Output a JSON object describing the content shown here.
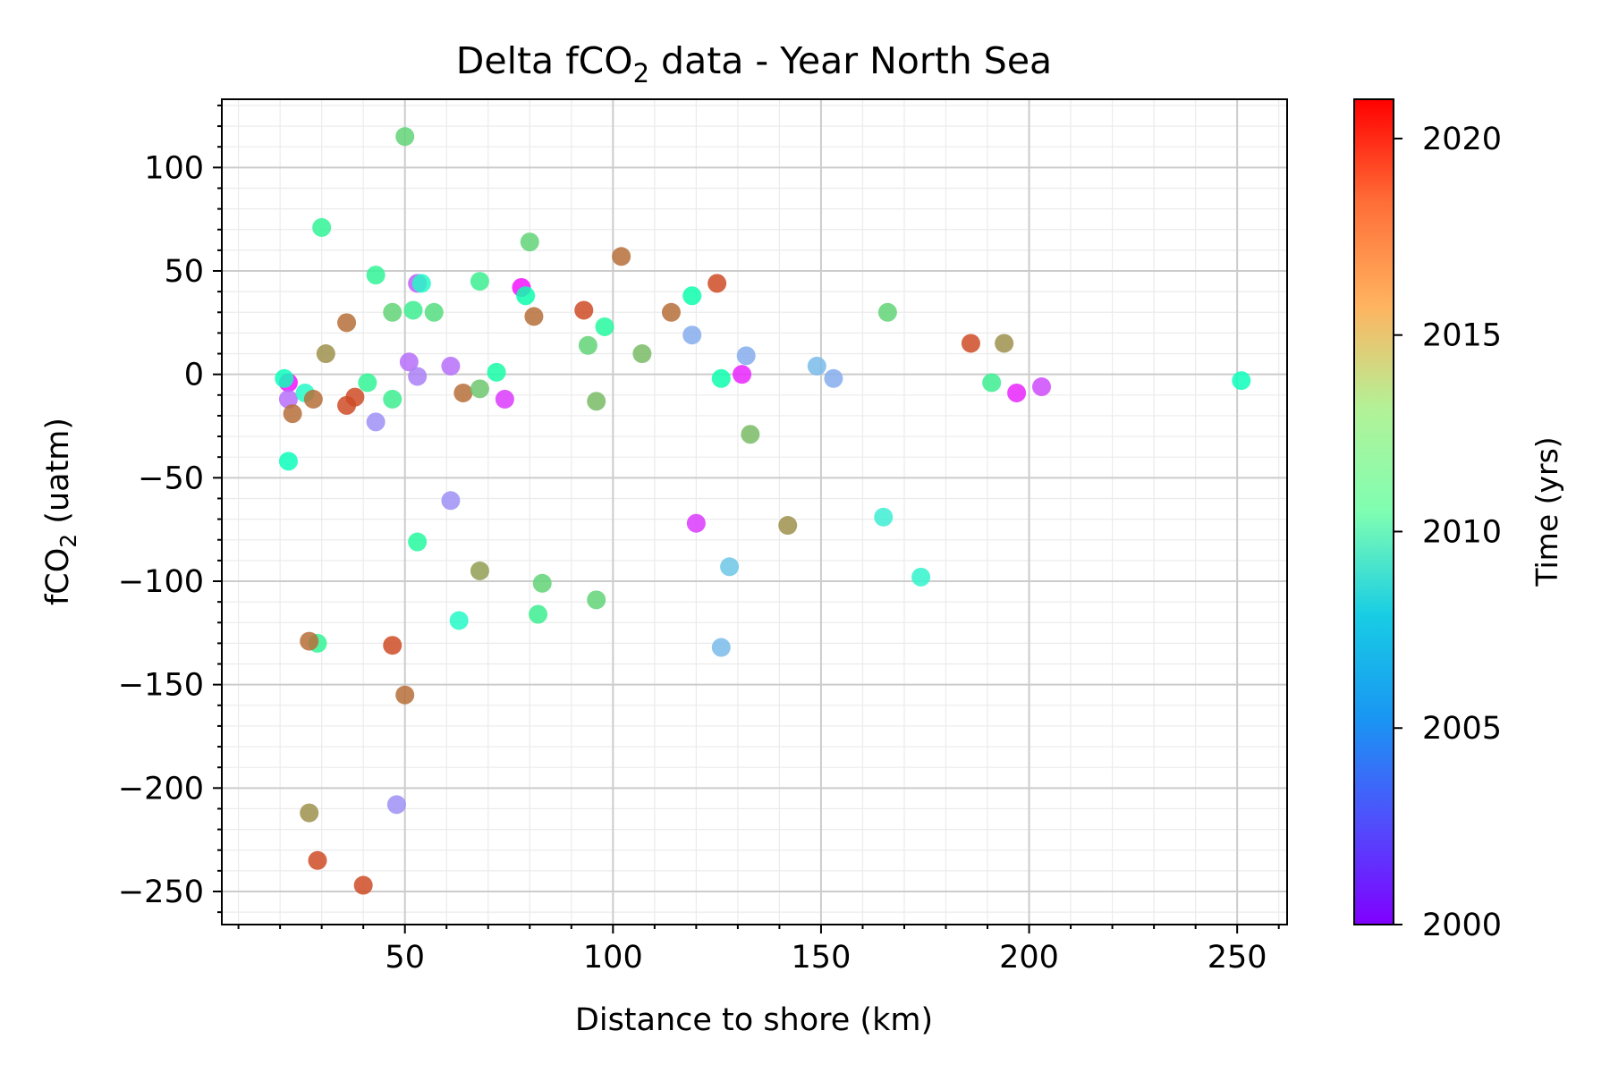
{
  "chart_data": {
    "type": "scatter",
    "title": "Delta fCO",
    "title_sub": "2",
    "title_suffix": " data - Year North Sea",
    "xlabel": "Distance to shore (km)",
    "ylabel": "fCO",
    "ylabel_sub": "2",
    "ylabel_suffix": " (uatm)",
    "xlim": [
      6,
      262
    ],
    "ylim": [
      -266,
      133
    ],
    "xticks": [
      50,
      100,
      150,
      200,
      250
    ],
    "xtick_labels": [
      "50",
      "100",
      "150",
      "200",
      "250"
    ],
    "yticks": [
      100,
      50,
      0,
      -50,
      -100,
      -150,
      -200,
      -250
    ],
    "ytick_labels": [
      "100",
      "50",
      "0",
      "−50",
      "−100",
      "−150",
      "−200",
      "−250"
    ],
    "grid": true,
    "colorbar": {
      "label": "Time (yrs)",
      "range": [
        2000,
        2021
      ],
      "ticks": [
        2000,
        2005,
        2010,
        2015,
        2020
      ],
      "tick_labels": [
        "2000",
        "2005",
        "2010",
        "2015",
        "2020"
      ],
      "colormap": "rainbow"
    },
    "points": [
      {
        "x": 22,
        "y": -4,
        "t": 2000.5
      },
      {
        "x": 21,
        "y": -2,
        "t": 2010
      },
      {
        "x": 22,
        "y": -12,
        "t": 2003
      },
      {
        "x": 23,
        "y": -19,
        "t": 2018
      },
      {
        "x": 26,
        "y": -9,
        "t": 2009
      },
      {
        "x": 28,
        "y": -12,
        "t": 2018
      },
      {
        "x": 22,
        "y": -42,
        "t": 2010
      },
      {
        "x": 30,
        "y": 71,
        "t": 2012.5
      },
      {
        "x": 31,
        "y": 10,
        "t": 2017
      },
      {
        "x": 36,
        "y": 25,
        "t": 2018
      },
      {
        "x": 36,
        "y": -15,
        "t": 2019
      },
      {
        "x": 38,
        "y": -11,
        "t": 2019
      },
      {
        "x": 41,
        "y": -4,
        "t": 2012.5
      },
      {
        "x": 43,
        "y": 48,
        "t": 2012.5
      },
      {
        "x": 43,
        "y": -23,
        "t": 2004
      },
      {
        "x": 47,
        "y": 30,
        "t": 2014.5
      },
      {
        "x": 47,
        "y": -12,
        "t": 2013
      },
      {
        "x": 50,
        "y": 115,
        "t": 2014.5
      },
      {
        "x": 51,
        "y": 6,
        "t": 2003
      },
      {
        "x": 52,
        "y": 31,
        "t": 2013
      },
      {
        "x": 53,
        "y": 44,
        "t": 2002.5
      },
      {
        "x": 54,
        "y": 44,
        "t": 2009
      },
      {
        "x": 53,
        "y": -1,
        "t": 2003.5
      },
      {
        "x": 57,
        "y": 30,
        "t": 2014
      },
      {
        "x": 61,
        "y": 4,
        "t": 2003
      },
      {
        "x": 64,
        "y": -9,
        "t": 2018
      },
      {
        "x": 68,
        "y": 45,
        "t": 2013
      },
      {
        "x": 68,
        "y": -7,
        "t": 2015
      },
      {
        "x": 72,
        "y": 1,
        "t": 2011.5
      },
      {
        "x": 74,
        "y": -12,
        "t": 2001.5
      },
      {
        "x": 78,
        "y": 42,
        "t": 2000.5
      },
      {
        "x": 79,
        "y": 38,
        "t": 2011
      },
      {
        "x": 80,
        "y": 64,
        "t": 2014.5
      },
      {
        "x": 81,
        "y": 28,
        "t": 2018
      },
      {
        "x": 93,
        "y": 31,
        "t": 2019
      },
      {
        "x": 94,
        "y": 14,
        "t": 2014.5
      },
      {
        "x": 96,
        "y": -13,
        "t": 2015.5
      },
      {
        "x": 98,
        "y": 23,
        "t": 2012
      },
      {
        "x": 102,
        "y": 57,
        "t": 2018
      },
      {
        "x": 107,
        "y": 10,
        "t": 2015.5
      },
      {
        "x": 114,
        "y": 30,
        "t": 2018
      },
      {
        "x": 119,
        "y": 38,
        "t": 2011
      },
      {
        "x": 119,
        "y": 19,
        "t": 2005
      },
      {
        "x": 125,
        "y": 44,
        "t": 2019
      },
      {
        "x": 126,
        "y": -2,
        "t": 2011
      },
      {
        "x": 131,
        "y": 0,
        "t": 2001
      },
      {
        "x": 132,
        "y": 9,
        "t": 2005
      },
      {
        "x": 133,
        "y": -29,
        "t": 2015.5
      },
      {
        "x": 149,
        "y": 4,
        "t": 2005.5
      },
      {
        "x": 153,
        "y": -2,
        "t": 2005
      },
      {
        "x": 166,
        "y": 30,
        "t": 2014.5
      },
      {
        "x": 186,
        "y": 15,
        "t": 2019
      },
      {
        "x": 191,
        "y": -4,
        "t": 2013
      },
      {
        "x": 194,
        "y": 15,
        "t": 2017
      },
      {
        "x": 197,
        "y": -9,
        "t": 2001
      },
      {
        "x": 203,
        "y": -6,
        "t": 2002
      },
      {
        "x": 251,
        "y": -3,
        "t": 2010
      },
      {
        "x": 61,
        "y": -61,
        "t": 2004
      },
      {
        "x": 53,
        "y": -81,
        "t": 2012
      },
      {
        "x": 68,
        "y": -95,
        "t": 2016.5
      },
      {
        "x": 83,
        "y": -101,
        "t": 2014.5
      },
      {
        "x": 96,
        "y": -109,
        "t": 2014.5
      },
      {
        "x": 82,
        "y": -116,
        "t": 2013
      },
      {
        "x": 63,
        "y": -119,
        "t": 2009
      },
      {
        "x": 29,
        "y": -130,
        "t": 2012.5
      },
      {
        "x": 27,
        "y": -129,
        "t": 2018
      },
      {
        "x": 47,
        "y": -131,
        "t": 2019
      },
      {
        "x": 50,
        "y": -155,
        "t": 2018
      },
      {
        "x": 120,
        "y": -72,
        "t": 2001.5
      },
      {
        "x": 128,
        "y": -93,
        "t": 2006
      },
      {
        "x": 126,
        "y": -132,
        "t": 2005.5
      },
      {
        "x": 142,
        "y": -73,
        "t": 2017
      },
      {
        "x": 165,
        "y": -69,
        "t": 2008
      },
      {
        "x": 174,
        "y": -98,
        "t": 2008.5
      },
      {
        "x": 48,
        "y": -208,
        "t": 2004
      },
      {
        "x": 27,
        "y": -212,
        "t": 2017
      },
      {
        "x": 29,
        "y": -235,
        "t": 2019
      },
      {
        "x": 40,
        "y": -247,
        "t": 2019
      }
    ]
  }
}
